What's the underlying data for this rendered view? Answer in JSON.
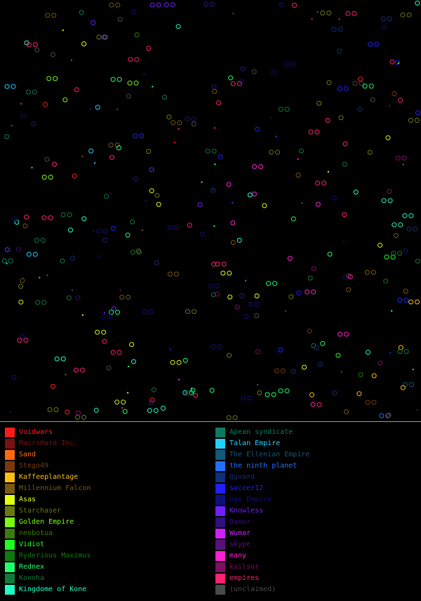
{
  "legend": {
    "left": [
      {
        "label": "Voidwars",
        "color": "#ff1a1a"
      },
      {
        "label": "MacroHard Inc.",
        "color": "#7a1010"
      },
      {
        "label": "Sand",
        "color": "#ff6a10"
      },
      {
        "label": "Stego49",
        "color": "#7a3810"
      },
      {
        "label": "Kaffeeplantage",
        "color": "#ffbf10"
      },
      {
        "label": "Millennium Falcon",
        "color": "#7a5a10"
      },
      {
        "label": "Asas",
        "color": "#e0ff10"
      },
      {
        "label": "Starchaser",
        "color": "#6a7a10"
      },
      {
        "label": "Golden Empire",
        "color": "#7aff10"
      },
      {
        "label": "neobotua",
        "color": "#3a7a10"
      },
      {
        "label": "Vidiot",
        "color": "#20ff20"
      },
      {
        "label": "Ryderious Maximus",
        "color": "#107a10"
      },
      {
        "label": "Rednex",
        "color": "#20ff70"
      },
      {
        "label": "Konoha",
        "color": "#107a3a"
      },
      {
        "label": "Kingdome of Kone",
        "color": "#20ffc8"
      }
    ],
    "right": [
      {
        "label": "Apean syndicate",
        "color": "#107a60"
      },
      {
        "label": "Talan Empire",
        "color": "#20d0ff"
      },
      {
        "label": "The Ellenian Empire",
        "color": "#105a7a"
      },
      {
        "label": "the ninth planet",
        "color": "#2070ff"
      },
      {
        "label": "Qgvard",
        "color": "#10307a"
      },
      {
        "label": "soccer12",
        "color": "#2020ff"
      },
      {
        "label": "ogo Empire",
        "color": "#10107a"
      },
      {
        "label": "Knowless",
        "color": "#7020ff"
      },
      {
        "label": "Damar",
        "color": "#30107a"
      },
      {
        "label": "Wumar",
        "color": "#d020ff"
      },
      {
        "label": "skype",
        "color": "#5a107a"
      },
      {
        "label": "many",
        "color": "#ff20d0"
      },
      {
        "label": "kailsor",
        "color": "#7a1060"
      },
      {
        "label": "empires",
        "color": "#ff2070"
      },
      {
        "label": "(unclaimed)",
        "color": "#4a4a4a"
      }
    ]
  }
}
